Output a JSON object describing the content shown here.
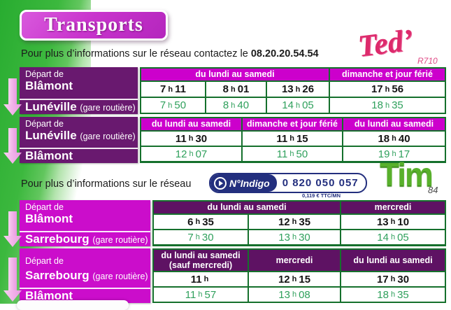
{
  "title": "Transports",
  "info_ted": {
    "prefix": "Pour plus d’informations sur le réseau contactez le",
    "phone": "08.20.20.54.54"
  },
  "info_tim": {
    "text": "Pour plus d’informations sur le réseau"
  },
  "indigo": {
    "brand": "N°Indigo",
    "number": "0 820 050 057",
    "rate": "0,119 € TTC/MN"
  },
  "logos": {
    "ted": "Ted’",
    "ted_ref": "R710",
    "tim": "Tim",
    "tim_ref": "84"
  },
  "colors": {
    "magenta": "#cc00cc",
    "dark_purple": "#69196f",
    "border_green": "#15702c",
    "time_green": "#2fa05c",
    "band_green": "#3cb83e",
    "ted_pink": "#dd2a6c",
    "indigo_navy": "#232f7e",
    "tim_green": "#58b02b"
  },
  "tables": [
    {
      "depart_label": "Départ de",
      "from": "Blâmont",
      "from_suffix": "",
      "to": "Lunéville",
      "to_suffix": "(gare routière)",
      "headers": [
        {
          "label": "du lundi au samedi",
          "sub": ""
        },
        {
          "label": "dimanche et jour férié",
          "sub": ""
        }
      ],
      "departures": [
        "7 h 11",
        "8 h 01",
        "13 h 26",
        "17 h 56"
      ],
      "arrivals": [
        "7 h 50",
        "8 h 40",
        "14 h 05",
        "18 h 35"
      ]
    },
    {
      "depart_label": "Départ de",
      "from": "Lunéville",
      "from_suffix": "(gare routière)",
      "to": "Blâmont",
      "to_suffix": "",
      "headers": [
        {
          "label": "du lundi au samedi",
          "sub": ""
        },
        {
          "label": "dimanche et jour férié",
          "sub": ""
        },
        {
          "label": "du lundi au samedi",
          "sub": ""
        }
      ],
      "departures": [
        "11 h 30",
        "11 h 15",
        "18 h 40"
      ],
      "arrivals": [
        "12 h 07",
        "11 h 50",
        "19 h 17"
      ]
    },
    {
      "depart_label": "Départ de",
      "from": "Blâmont",
      "from_suffix": "",
      "to": "Sarrebourg",
      "to_suffix": "(gare routière)",
      "headers": [
        {
          "label": "du lundi au samedi",
          "sub": ""
        },
        {
          "label": "mercredi",
          "sub": ""
        }
      ],
      "departures": [
        "6 h 35",
        "12 h 35",
        "13 h 10"
      ],
      "arrivals": [
        "7 h 30",
        "13 h 30",
        "14 h 05"
      ]
    },
    {
      "depart_label": "Départ de",
      "from": "Sarrebourg",
      "from_suffix": "(gare routière)",
      "to": "Blâmont",
      "to_suffix": "",
      "headers": [
        {
          "label": "du lundi au samedi",
          "sub": "(sauf mercredi)"
        },
        {
          "label": "mercredi",
          "sub": ""
        },
        {
          "label": "du lundi au samedi",
          "sub": ""
        }
      ],
      "departures": [
        "11 h",
        "12 h 15",
        "17 h 30"
      ],
      "arrivals": [
        "11 h 57",
        "13 h 08",
        "18 h 35"
      ]
    }
  ]
}
